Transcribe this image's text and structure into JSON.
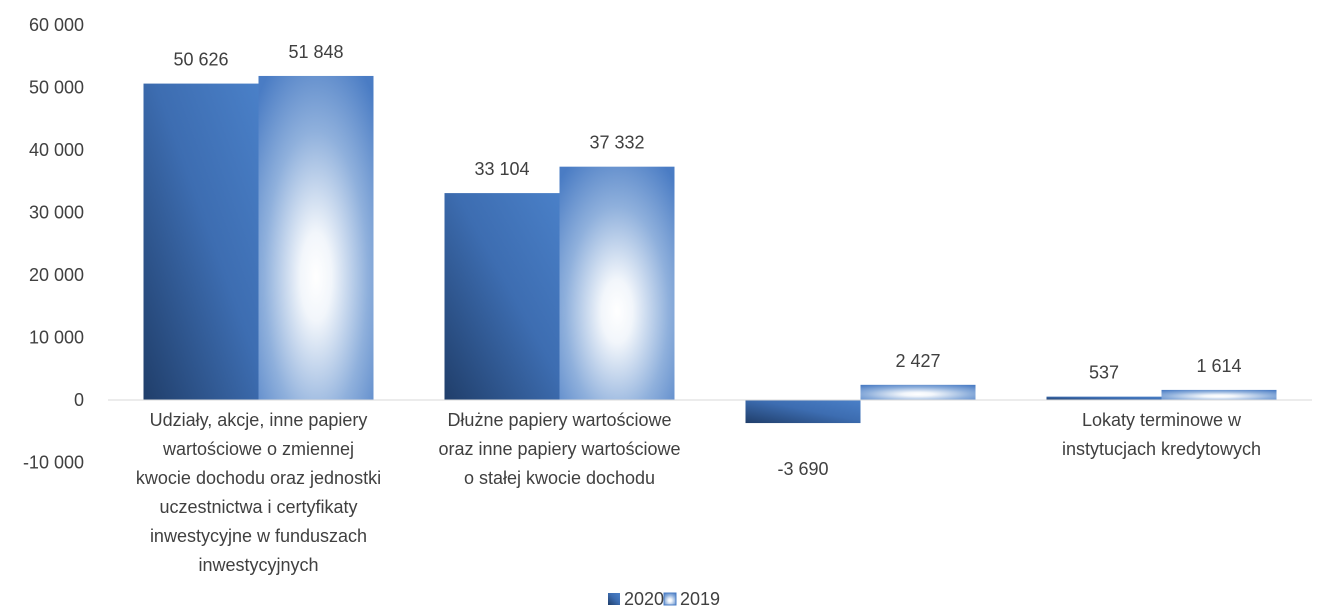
{
  "chart_data": {
    "type": "bar",
    "categories": [
      [
        "Udziały, akcje, inne papiery",
        "wartościowe o zmiennej",
        "kwocie dochodu oraz jednostki",
        "uczestnictwa i certyfikaty",
        "inwestycyjne w funduszach",
        "inwestycyjnych"
      ],
      [
        "Dłużne papiery wartościowe",
        "oraz inne papiery wartościowe",
        "o stałej kwocie dochodu"
      ],
      [
        ""
      ],
      [
        "Lokaty terminowe w",
        "instytucjach kredytowych"
      ]
    ],
    "series": [
      {
        "name": "2020",
        "values": [
          50626,
          33104,
          -3690,
          537
        ],
        "labels": [
          "50 626",
          "33 104",
          "-3 690",
          "537"
        ],
        "color": "#3f6fb4"
      },
      {
        "name": "2019",
        "values": [
          51848,
          37332,
          2427,
          1614
        ],
        "labels": [
          "51 848",
          "37 332",
          "2 427",
          "1 614"
        ],
        "color": "#4a7cc4"
      }
    ],
    "ylim": [
      -10000,
      60000
    ],
    "yticks": [
      60000,
      50000,
      40000,
      30000,
      20000,
      10000,
      0,
      -10000
    ],
    "ytick_labels": [
      "60 000",
      "50 000",
      "40 000",
      "30 000",
      "20 000",
      "10 000",
      "0",
      "-10 000"
    ],
    "grid": false,
    "legend_position": "bottom"
  }
}
